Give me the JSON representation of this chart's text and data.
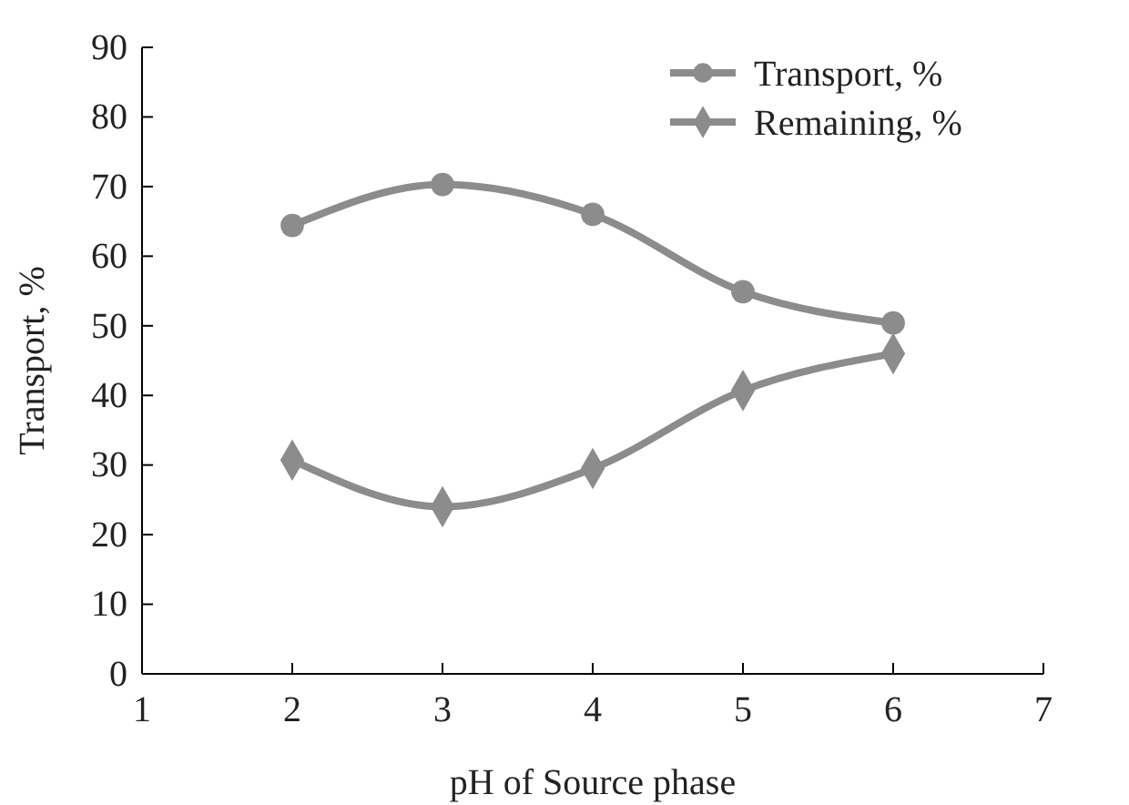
{
  "chart_data": {
    "type": "line",
    "xlabel": "pH of Source phase",
    "ylabel": "Transport, %",
    "x": [
      2,
      3,
      4,
      5,
      6
    ],
    "series": [
      {
        "name": "Transport, %",
        "color": "#8c8c8c",
        "marker": "circle",
        "values": [
          64.4,
          70.3,
          66.0,
          54.9,
          50.4
        ]
      },
      {
        "name": "Remaining, %",
        "color": "#8c8c8c",
        "marker": "diamond",
        "values": [
          30.7,
          24.0,
          29.5,
          40.7,
          46.0
        ]
      }
    ],
    "xlim": [
      1,
      7
    ],
    "xticks": [
      1,
      2,
      3,
      4,
      5,
      6,
      7
    ],
    "ylim": [
      0,
      90
    ],
    "yticks": [
      0,
      10,
      20,
      30,
      40,
      50,
      60,
      70,
      80,
      90
    ],
    "grid": false,
    "legend": "top right",
    "line_style": "solid"
  }
}
